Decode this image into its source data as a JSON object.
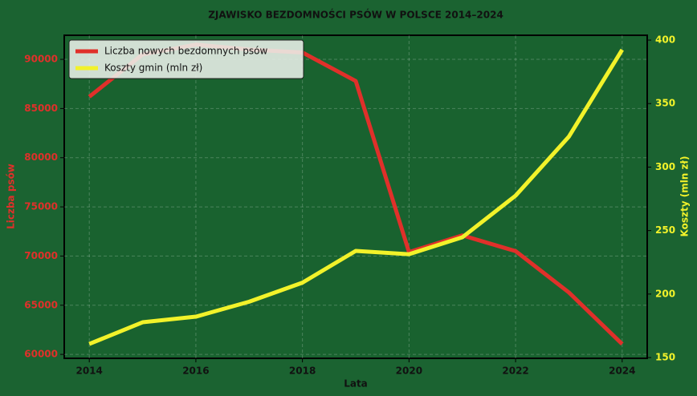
{
  "chart_data": {
    "type": "line",
    "title": "ZJAWISKO BEZDOMNOŚCI PSÓW W POLSCE 2014–2024",
    "x_label": "Lata",
    "y_label": "Liczba psów",
    "y2_label": "Koszty (mln zł)",
    "x": [
      2014,
      2015,
      2016,
      2017,
      2018,
      2019,
      2020,
      2021,
      2022,
      2023,
      2024
    ],
    "series": [
      {
        "name": "Liczba nowych bezdomnych psów",
        "color": "#e0302a",
        "values": [
          86200,
          90500,
          91500,
          91000,
          90700,
          87800,
          70400,
          72100,
          70500,
          66300,
          61050
        ]
      },
      {
        "name": "Koszty gmin (mln zł)",
        "color": "#f2f22a",
        "axis": "y2",
        "values": [
          160.7,
          177.8,
          182.2,
          194,
          209,
          234,
          231.4,
          244.7,
          277.5,
          324,
          392.4
        ]
      }
    ],
    "xlim": [
      2013.53,
      2024.47
    ],
    "xticks": [
      2014,
      2016,
      2018,
      2020,
      2022,
      2024
    ],
    "ylim": [
      59600,
      92450
    ],
    "yticks": [
      60000,
      65000,
      70000,
      75000,
      80000,
      85000,
      90000
    ],
    "y2lim": [
      149.4,
      403.8
    ],
    "y2ticks": [
      150,
      200,
      250,
      300,
      350,
      400
    ],
    "grid": true,
    "legend": "upper-left"
  }
}
